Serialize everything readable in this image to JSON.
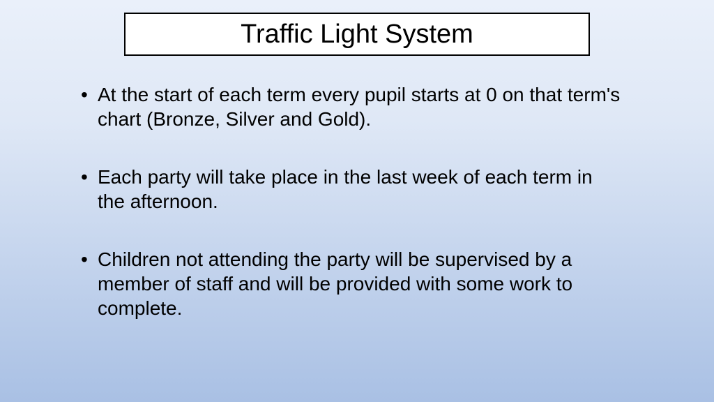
{
  "slide": {
    "title": "Traffic Light System",
    "bullets": [
      "At the start of each term every pupil starts at 0 on that term's chart (Bronze, Silver and Gold).",
      "Each party will take place in the last week of each term in the afternoon.",
      "Children not attending the party will be supervised by a member of staff and will be provided with some work to complete."
    ],
    "background_gradient_top": "#eaf0fa",
    "background_gradient_bottom": "#a9c0e4",
    "title_box_bg": "#ffffff",
    "title_box_border": "#000000",
    "title_fontsize": 38,
    "body_fontsize": 28,
    "text_color": "#000000"
  }
}
